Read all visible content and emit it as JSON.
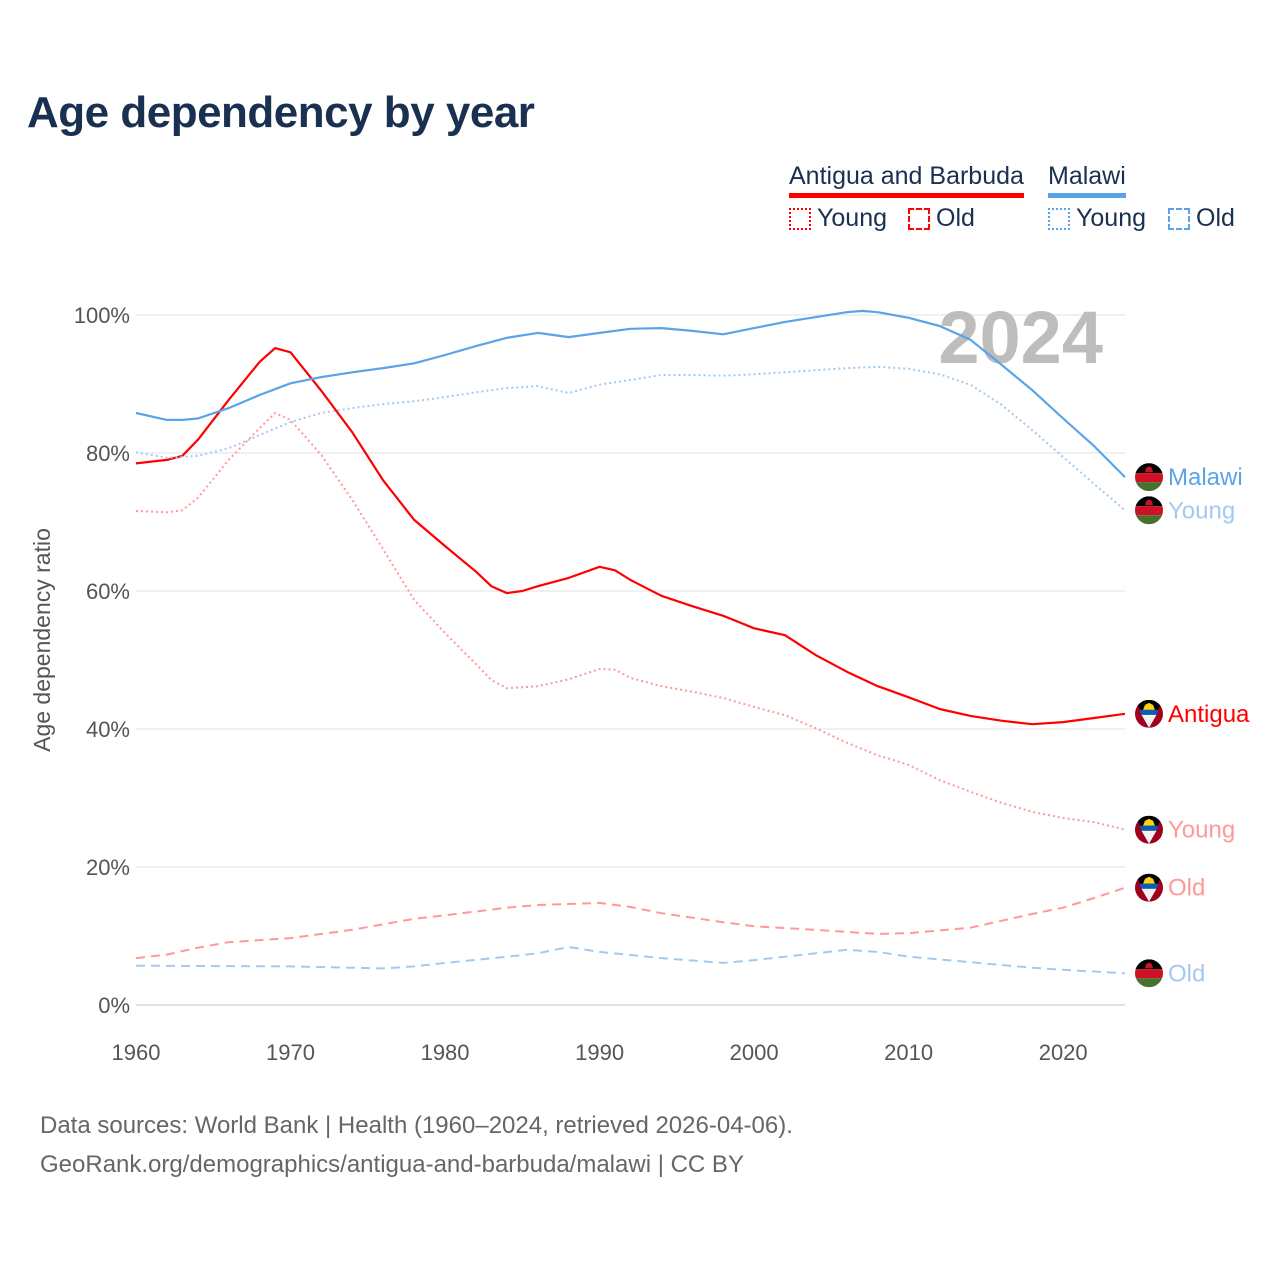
{
  "title": "Age dependency by year",
  "legend": {
    "countries": [
      {
        "name": "Antigua and Barbuda",
        "color": "#ff0000",
        "light": "#ff9999"
      },
      {
        "name": "Malawi",
        "color": "#5ba3e8",
        "light": "#a3c9f0"
      }
    ],
    "young_label": "Young",
    "old_label": "Old"
  },
  "footer": {
    "line1": "Data sources: World Bank | Health (1960–2024, retrieved 2026-04-06).",
    "line2": "GeoRank.org/demographics/antigua-and-barbuda/malawi | CC BY"
  },
  "chart_data": {
    "type": "line",
    "title": "Age dependency by year",
    "xlabel": "",
    "ylabel": "Age dependency ratio",
    "xlim": [
      1960,
      2024
    ],
    "ylim": [
      0,
      100
    ],
    "x_ticks": [
      1960,
      1970,
      1980,
      1990,
      2000,
      2010,
      2020
    ],
    "y_ticks": [
      0,
      20,
      40,
      60,
      80,
      100
    ],
    "y_tick_labels": [
      "0%",
      "20%",
      "40%",
      "60%",
      "80%",
      "100%"
    ],
    "grid": "horizontal",
    "watermark": "2024",
    "legend_position": "top-right",
    "series": [
      {
        "name": "Antigua",
        "country": "Antigua and Barbuda",
        "kind": "total",
        "color": "#ff0000",
        "dash": "solid",
        "flag": "antigua",
        "points": [
          [
            1960,
            78.5
          ],
          [
            1962,
            79
          ],
          [
            1963,
            79.6
          ],
          [
            1964,
            81.9
          ],
          [
            1966,
            87.7
          ],
          [
            1968,
            93.2
          ],
          [
            1969,
            95.2
          ],
          [
            1970,
            94.6
          ],
          [
            1972,
            89
          ],
          [
            1974,
            83
          ],
          [
            1976,
            76
          ],
          [
            1978,
            70.3
          ],
          [
            1980,
            66.5
          ],
          [
            1982,
            62.8
          ],
          [
            1983,
            60.7
          ],
          [
            1984,
            59.7
          ],
          [
            1985,
            60
          ],
          [
            1986,
            60.7
          ],
          [
            1988,
            61.9
          ],
          [
            1990,
            63.5
          ],
          [
            1991,
            63
          ],
          [
            1992,
            61.6
          ],
          [
            1994,
            59.3
          ],
          [
            1996,
            57.8
          ],
          [
            1998,
            56.4
          ],
          [
            1999,
            55.5
          ],
          [
            2000,
            54.6
          ],
          [
            2002,
            53.6
          ],
          [
            2004,
            50.7
          ],
          [
            2006,
            48.3
          ],
          [
            2008,
            46.2
          ],
          [
            2010,
            44.6
          ],
          [
            2012,
            42.9
          ],
          [
            2014,
            41.9
          ],
          [
            2016,
            41.2
          ],
          [
            2018,
            40.7
          ],
          [
            2020,
            41
          ],
          [
            2022,
            41.6
          ],
          [
            2024,
            42.2
          ]
        ]
      },
      {
        "name": "Young",
        "country": "Antigua and Barbuda",
        "kind": "young",
        "color": "#ff9999",
        "dash": "dotted",
        "flag": "antigua",
        "points": [
          [
            1960,
            71.6
          ],
          [
            1962,
            71.4
          ],
          [
            1963,
            71.7
          ],
          [
            1964,
            73.5
          ],
          [
            1966,
            79
          ],
          [
            1968,
            83.6
          ],
          [
            1969,
            85.8
          ],
          [
            1970,
            84.8
          ],
          [
            1972,
            79.7
          ],
          [
            1974,
            73.2
          ],
          [
            1976,
            66
          ],
          [
            1978,
            58.7
          ],
          [
            1980,
            53.9
          ],
          [
            1982,
            49.4
          ],
          [
            1983,
            47.1
          ],
          [
            1984,
            45.9
          ],
          [
            1986,
            46.2
          ],
          [
            1988,
            47.2
          ],
          [
            1990,
            48.7
          ],
          [
            1991,
            48.6
          ],
          [
            1992,
            47.4
          ],
          [
            1994,
            46.2
          ],
          [
            1996,
            45.4
          ],
          [
            1998,
            44.5
          ],
          [
            2000,
            43.2
          ],
          [
            2002,
            42
          ],
          [
            2004,
            40.1
          ],
          [
            2006,
            38
          ],
          [
            2008,
            36.2
          ],
          [
            2010,
            34.8
          ],
          [
            2012,
            32.6
          ],
          [
            2014,
            30.9
          ],
          [
            2016,
            29.3
          ],
          [
            2018,
            28
          ],
          [
            2020,
            27.1
          ],
          [
            2022,
            26.5
          ],
          [
            2024,
            25.4
          ]
        ]
      },
      {
        "name": "Old",
        "country": "Antigua and Barbuda",
        "kind": "old",
        "color": "#ff9999",
        "dash": "dashed",
        "flag": "antigua",
        "points": [
          [
            1960,
            6.8
          ],
          [
            1962,
            7.3
          ],
          [
            1964,
            8.3
          ],
          [
            1966,
            9.1
          ],
          [
            1968,
            9.4
          ],
          [
            1970,
            9.7
          ],
          [
            1974,
            10.9
          ],
          [
            1978,
            12.5
          ],
          [
            1980,
            13
          ],
          [
            1984,
            14.1
          ],
          [
            1986,
            14.5
          ],
          [
            1990,
            14.8
          ],
          [
            1992,
            14.2
          ],
          [
            1994,
            13.3
          ],
          [
            1998,
            12
          ],
          [
            2000,
            11.4
          ],
          [
            2004,
            10.9
          ],
          [
            2006,
            10.6
          ],
          [
            2008,
            10.3
          ],
          [
            2010,
            10.4
          ],
          [
            2014,
            11.2
          ],
          [
            2018,
            13.2
          ],
          [
            2020,
            14.1
          ],
          [
            2022,
            15.5
          ],
          [
            2024,
            17
          ]
        ]
      },
      {
        "name": "Malawi",
        "country": "Malawi",
        "kind": "total",
        "color": "#5ba3e8",
        "dash": "solid",
        "flag": "malawi",
        "points": [
          [
            1960,
            85.8
          ],
          [
            1962,
            84.8
          ],
          [
            1963,
            84.8
          ],
          [
            1964,
            85
          ],
          [
            1966,
            86.5
          ],
          [
            1968,
            88.4
          ],
          [
            1970,
            90.1
          ],
          [
            1972,
            91
          ],
          [
            1974,
            91.7
          ],
          [
            1976,
            92.3
          ],
          [
            1978,
            93
          ],
          [
            1980,
            94.2
          ],
          [
            1982,
            95.5
          ],
          [
            1984,
            96.7
          ],
          [
            1986,
            97.4
          ],
          [
            1988,
            96.8
          ],
          [
            1990,
            97.4
          ],
          [
            1992,
            98
          ],
          [
            1994,
            98.1
          ],
          [
            1996,
            97.7
          ],
          [
            1998,
            97.2
          ],
          [
            2000,
            98.1
          ],
          [
            2002,
            99
          ],
          [
            2004,
            99.7
          ],
          [
            2006,
            100.4
          ],
          [
            2007,
            100.6
          ],
          [
            2008,
            100.4
          ],
          [
            2010,
            99.6
          ],
          [
            2012,
            98.4
          ],
          [
            2014,
            96.4
          ],
          [
            2016,
            92.8
          ],
          [
            2018,
            89.1
          ],
          [
            2020,
            85
          ],
          [
            2022,
            81
          ],
          [
            2024,
            76.5
          ]
        ]
      },
      {
        "name": "Young",
        "country": "Malawi",
        "kind": "young",
        "color": "#a3c9f0",
        "dash": "dotted",
        "flag": "malawi",
        "points": [
          [
            1960,
            80.1
          ],
          [
            1962,
            79.3
          ],
          [
            1964,
            79.6
          ],
          [
            1966,
            80.7
          ],
          [
            1968,
            82.6
          ],
          [
            1970,
            84.5
          ],
          [
            1972,
            85.8
          ],
          [
            1974,
            86.5
          ],
          [
            1976,
            87.1
          ],
          [
            1978,
            87.5
          ],
          [
            1980,
            88.1
          ],
          [
            1982,
            88.8
          ],
          [
            1984,
            89.4
          ],
          [
            1986,
            89.7
          ],
          [
            1988,
            88.7
          ],
          [
            1990,
            89.9
          ],
          [
            1992,
            90.6
          ],
          [
            1994,
            91.3
          ],
          [
            1996,
            91.3
          ],
          [
            1998,
            91.2
          ],
          [
            2000,
            91.4
          ],
          [
            2002,
            91.7
          ],
          [
            2004,
            92
          ],
          [
            2006,
            92.3
          ],
          [
            2008,
            92.5
          ],
          [
            2010,
            92.2
          ],
          [
            2012,
            91.4
          ],
          [
            2014,
            89.9
          ],
          [
            2016,
            87
          ],
          [
            2018,
            83.3
          ],
          [
            2020,
            79.4
          ],
          [
            2022,
            75.5
          ],
          [
            2024,
            71.7
          ]
        ]
      },
      {
        "name": "Old",
        "country": "Malawi",
        "kind": "old",
        "color": "#a3c9f0",
        "dash": "dashed",
        "flag": "malawi",
        "points": [
          [
            1960,
            5.7
          ],
          [
            1970,
            5.6
          ],
          [
            1976,
            5.3
          ],
          [
            1978,
            5.6
          ],
          [
            1980,
            6.1
          ],
          [
            1984,
            7
          ],
          [
            1986,
            7.5
          ],
          [
            1988,
            8.4
          ],
          [
            1990,
            7.7
          ],
          [
            1994,
            6.8
          ],
          [
            1998,
            6.1
          ],
          [
            2000,
            6.5
          ],
          [
            2004,
            7.5
          ],
          [
            2006,
            8
          ],
          [
            2008,
            7.7
          ],
          [
            2010,
            7
          ],
          [
            2014,
            6.2
          ],
          [
            2018,
            5.4
          ],
          [
            2020,
            5.1
          ],
          [
            2024,
            4.6
          ]
        ]
      }
    ]
  }
}
